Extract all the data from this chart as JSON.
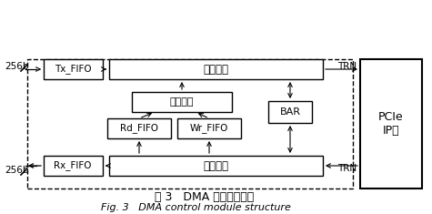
{
  "bg_color": "#ffffff",
  "title_cn": "图 3   DMA 控制模块结构",
  "title_en": "Fig. 3   DMA control module structure",
  "label_tx_fifo": "Tx_FIFO",
  "label_send": "发送模块",
  "label_cmd": "命令解析",
  "label_rd_fifo": "Rd_FIFO",
  "label_wr_fifo": "Wr_FIFO",
  "label_bar": "BAR",
  "label_rx_fifo": "Rx_FIFO",
  "label_recv": "接收模块",
  "label_pcie": "PCIe\nIP核",
  "label_256b_top": "256b",
  "label_256b_bot": "256b",
  "label_trn_top": "TRN",
  "label_trn_bot": "TRN"
}
